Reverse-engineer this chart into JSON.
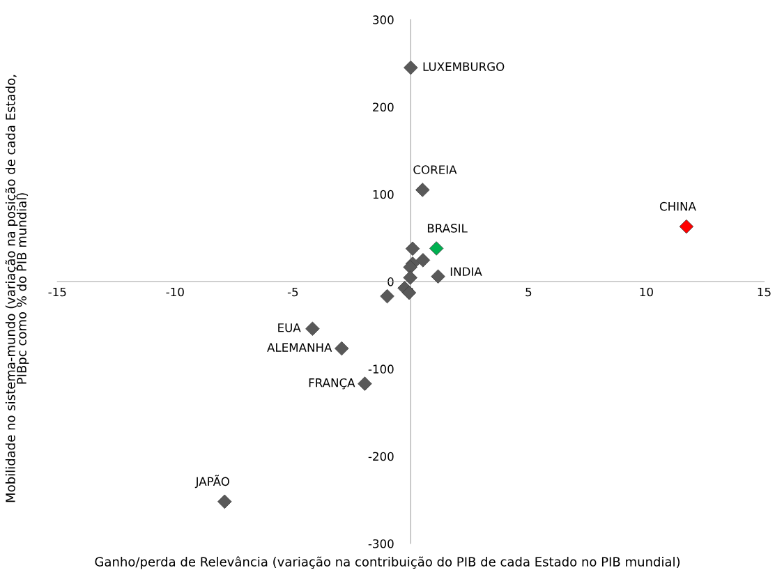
{
  "chart_data": {
    "type": "scatter",
    "xlabel": "Ganho/perda de Relevância (variação na contribuição do PIB de cada Estado no PIB mundial)",
    "ylabel": "Mobilidade no sistema-mundo (variação na posição de cada Estado,\nPIBpc como % do PIB mundial)",
    "x": [
      0.0,
      0.5,
      11.7,
      1.09,
      0.08,
      0.52,
      0.08,
      -0.02,
      1.16,
      -0.02,
      -0.26,
      -0.07,
      -1.0,
      -4.17,
      -2.93,
      -1.95,
      -7.9
    ],
    "values": [
      245,
      105,
      63,
      38,
      37.7,
      24.5,
      20.5,
      16.5,
      5.8,
      4.5,
      -7.4,
      -12.8,
      -16.8,
      -54,
      -76.6,
      -117,
      -252
    ],
    "colors": [
      "#595959",
      "#595959",
      "#ff0000",
      "#00b050",
      "#595959",
      "#595959",
      "#595959",
      "#595959",
      "#595959",
      "#595959",
      "#595959",
      "#595959",
      "#595959",
      "#595959",
      "#595959",
      "#595959",
      "#595959"
    ],
    "marker": "diamond",
    "annotations": [
      {
        "text": "LUXEMBURGO",
        "x": 0.0,
        "y": 245
      },
      {
        "text": "COREIA",
        "x": 0.5,
        "y": 105
      },
      {
        "text": "CHINA",
        "x": 11.7,
        "y": 63
      },
      {
        "text": "BRASIL",
        "x": 1.09,
        "y": 38
      },
      {
        "text": "INDIA",
        "x": 1.16,
        "y": 5.8
      },
      {
        "text": "EUA",
        "x": -4.17,
        "y": -54
      },
      {
        "text": "ALEMANHA",
        "x": -2.93,
        "y": -76.6
      },
      {
        "text": "FRANÇA",
        "x": -1.95,
        "y": -117
      },
      {
        "text": "JAPÃO",
        "x": -7.9,
        "y": -252
      }
    ],
    "xlim": [
      -15,
      15
    ],
    "xticks": [
      -15,
      -10,
      -5,
      0,
      5,
      10,
      15
    ],
    "ylim": [
      -300,
      300
    ],
    "yticks": [
      -300,
      -200,
      -100,
      0,
      100,
      200,
      300
    ],
    "grid": false,
    "legend": false
  }
}
